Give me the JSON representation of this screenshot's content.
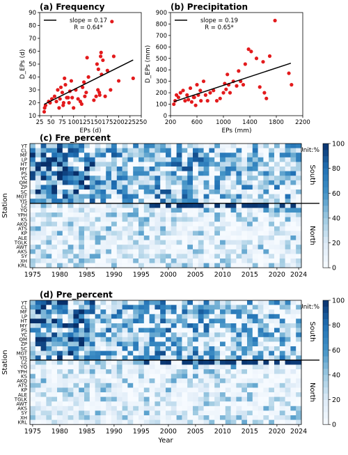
{
  "colors": {
    "point": "#e31a1c",
    "cmap_low": "#f7fbff",
    "cmap_high": "#08306b",
    "line": "#000000"
  },
  "chart_data": [
    {
      "type": "scatter",
      "title": "(a) Frequency",
      "xlabel": "EPs (d)",
      "ylabel": "D_EPs (d)",
      "xlim": [
        25,
        250
      ],
      "ylim": [
        10,
        90
      ],
      "xticks": [
        25,
        50,
        75,
        100,
        125,
        150,
        175,
        200,
        225,
        250
      ],
      "yticks": [
        10,
        20,
        30,
        40,
        50,
        60,
        70,
        80,
        90
      ],
      "legend": {
        "label": "slope = 0.17",
        "label2": "R = 0.64*",
        "position": "top-left"
      },
      "fit_line": {
        "x": [
          35,
          232
        ],
        "y": [
          18.8,
          53.2
        ]
      },
      "points": [
        [
          35,
          13
        ],
        [
          36,
          16
        ],
        [
          38,
          18
        ],
        [
          45,
          21
        ],
        [
          48,
          20
        ],
        [
          52,
          23
        ],
        [
          58,
          25
        ],
        [
          62,
          21
        ],
        [
          65,
          30
        ],
        [
          68,
          16
        ],
        [
          70,
          23
        ],
        [
          72,
          32
        ],
        [
          75,
          28
        ],
        [
          77,
          18
        ],
        [
          78,
          20
        ],
        [
          80,
          39
        ],
        [
          82,
          34
        ],
        [
          85,
          24
        ],
        [
          88,
          24
        ],
        [
          90,
          20
        ],
        [
          92,
          29
        ],
        [
          95,
          37
        ],
        [
          97,
          24
        ],
        [
          100,
          16
        ],
        [
          105,
          30
        ],
        [
          110,
          23
        ],
        [
          115,
          21
        ],
        [
          118,
          19
        ],
        [
          120,
          32
        ],
        [
          123,
          36
        ],
        [
          125,
          25
        ],
        [
          128,
          28
        ],
        [
          130,
          55
        ],
        [
          133,
          40
        ],
        [
          145,
          22
        ],
        [
          150,
          25
        ],
        [
          152,
          50
        ],
        [
          154,
          30
        ],
        [
          155,
          46
        ],
        [
          157,
          28
        ],
        [
          158,
          26
        ],
        [
          160,
          56
        ],
        [
          161,
          59
        ],
        [
          162,
          42
        ],
        [
          165,
          53
        ],
        [
          170,
          25
        ],
        [
          175,
          45
        ],
        [
          182,
          30
        ],
        [
          185,
          83
        ],
        [
          189,
          56
        ],
        [
          200,
          37
        ],
        [
          232,
          39
        ]
      ]
    },
    {
      "type": "scatter",
      "title": "(b) Precipitation",
      "xlabel": "EPs (mm)",
      "ylabel": "D_EPs (mm)",
      "xlim": [
        200,
        2200
      ],
      "ylim": [
        0,
        900
      ],
      "xticks": [
        200,
        600,
        1000,
        1400,
        1800,
        2200
      ],
      "yticks": [
        0,
        100,
        200,
        300,
        400,
        500,
        600,
        700,
        800,
        900
      ],
      "legend": {
        "label": "slope = 0.19",
        "label2": "R = 0.65*",
        "position": "top-left"
      },
      "fit_line": {
        "x": [
          250,
          2020
        ],
        "y": [
          122,
          458
        ]
      },
      "points": [
        [
          250,
          100
        ],
        [
          270,
          130
        ],
        [
          290,
          180
        ],
        [
          320,
          160
        ],
        [
          350,
          200
        ],
        [
          390,
          220
        ],
        [
          420,
          130
        ],
        [
          450,
          180
        ],
        [
          470,
          140
        ],
        [
          500,
          240
        ],
        [
          520,
          120
        ],
        [
          550,
          160
        ],
        [
          560,
          160
        ],
        [
          580,
          90
        ],
        [
          600,
          270
        ],
        [
          620,
          180
        ],
        [
          650,
          220
        ],
        [
          660,
          130
        ],
        [
          700,
          300
        ],
        [
          730,
          180
        ],
        [
          760,
          130
        ],
        [
          800,
          200
        ],
        [
          850,
          220
        ],
        [
          900,
          130
        ],
        [
          950,
          150
        ],
        [
          1000,
          200
        ],
        [
          1020,
          280
        ],
        [
          1040,
          230
        ],
        [
          1060,
          360
        ],
        [
          1080,
          270
        ],
        [
          1100,
          200
        ],
        [
          1150,
          300
        ],
        [
          1200,
          260
        ],
        [
          1230,
          390
        ],
        [
          1260,
          300
        ],
        [
          1300,
          270
        ],
        [
          1330,
          450
        ],
        [
          1380,
          580
        ],
        [
          1420,
          560
        ],
        [
          1500,
          500
        ],
        [
          1550,
          250
        ],
        [
          1600,
          470
        ],
        [
          1620,
          200
        ],
        [
          1650,
          150
        ],
        [
          1700,
          520
        ],
        [
          1780,
          830
        ],
        [
          1990,
          370
        ],
        [
          2030,
          270
        ]
      ]
    },
    {
      "type": "heatmap",
      "title": "(c) Fre_percent",
      "ylabel": "Station",
      "unit": "Unit:%",
      "years": [
        1975,
        2024
      ],
      "xticks": [
        "1975",
        "1980",
        "1985",
        "1990",
        "1995",
        "2000",
        "2005",
        "2010",
        "2015",
        "2020",
        "2024"
      ],
      "south_stations": [
        "YT",
        "CL",
        "MF",
        "LP",
        "HT",
        "MY",
        "PS",
        "YC",
        "QM",
        "ZP",
        "SC",
        "MGT",
        "YJS"
      ],
      "north_stations": [
        "LZ",
        "YQ",
        "YPH",
        "KS",
        "AKQ",
        "ATS",
        "KP",
        "ALE",
        "TGLK",
        "AWT",
        "AKS",
        "SY",
        "XH",
        "KRL"
      ],
      "south_label": "South",
      "north_label": "North",
      "colorbar_ticks": [
        0,
        20,
        40,
        60,
        80,
        100
      ]
    },
    {
      "type": "heatmap",
      "title": "(d) Pre_percent",
      "ylabel": "Station",
      "xlabel": "Year",
      "unit": "Unit:%",
      "years": [
        1975,
        2024
      ],
      "xticks": [
        "1975",
        "1980",
        "1985",
        "1990",
        "1995",
        "2000",
        "2005",
        "2010",
        "2015",
        "2020",
        "2024"
      ],
      "south_stations": [
        "YT",
        "CL",
        "MF",
        "LP",
        "HT",
        "MY",
        "PS",
        "YC",
        "QM",
        "ZP",
        "SC",
        "MGT",
        "YJS"
      ],
      "north_stations": [
        "LZ",
        "YQ",
        "YPH",
        "KS",
        "AKQ",
        "ATS",
        "KP",
        "ALE",
        "TGLK",
        "AWT",
        "AKS",
        "SY",
        "XH",
        "KRL"
      ],
      "south_label": "South",
      "north_label": "North",
      "colorbar_ticks": [
        0,
        20,
        40,
        60,
        80,
        100
      ]
    }
  ]
}
